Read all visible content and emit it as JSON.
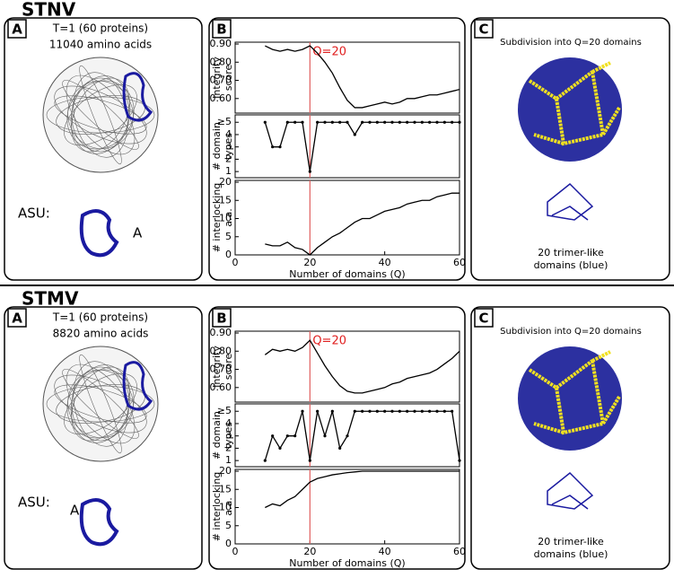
{
  "figures": [
    {
      "title": "STNV",
      "panel_a": {
        "label": "A",
        "lines": [
          "T=1 (60 proteins)",
          "11040 amino acids"
        ],
        "asu_label": "ASU:",
        "chain_label": "A"
      },
      "panel_b": {
        "label": "B"
      },
      "panel_c": {
        "label": "C",
        "caption": "Subdivision into Q=20 domains",
        "sublabel": [
          "20 trimer-like",
          "domains (blue)"
        ]
      }
    },
    {
      "title": "STMV",
      "panel_a": {
        "label": "A",
        "lines": [
          "T=1 (60 proteins)",
          "8820 amino acids"
        ],
        "asu_label": "ASU:",
        "chain_label": "A"
      },
      "panel_b": {
        "label": "B"
      },
      "panel_c": {
        "label": "C",
        "caption": "Subdivision into Q=20 domains",
        "sublabel": [
          "20 trimer-like",
          "domains (blue)"
        ]
      }
    }
  ],
  "chart_data": [
    {
      "type": "line",
      "y_label": [
        "Integrity",
        "score"
      ],
      "annotation": "Q=20",
      "highlight_x": 20,
      "color": "#000000",
      "highlight_color": "#e06060",
      "x": [
        8,
        10,
        12,
        14,
        16,
        18,
        20,
        22,
        24,
        26,
        28,
        30,
        32,
        34,
        36,
        38,
        40,
        42,
        44,
        46,
        48,
        50,
        52,
        54,
        56,
        58,
        60
      ],
      "values": [
        0.89,
        0.87,
        0.86,
        0.87,
        0.86,
        0.87,
        0.89,
        0.85,
        0.8,
        0.74,
        0.66,
        0.59,
        0.55,
        0.55,
        0.56,
        0.57,
        0.58,
        0.57,
        0.58,
        0.6,
        0.6,
        0.61,
        0.62,
        0.62,
        0.63,
        0.64,
        0.65
      ],
      "xlim": [
        0,
        60
      ],
      "ylim": [
        0.52,
        0.91
      ],
      "yticks": [
        {
          "value": 0.6,
          "label": "0.60"
        },
        {
          "value": 0.7,
          "label": "0.70"
        },
        {
          "value": 0.8,
          "label": "0.80"
        },
        {
          "value": 0.9,
          "label": "0.90"
        }
      ]
    },
    {
      "type": "line-dots",
      "y_label": [
        "# domain",
        "types"
      ],
      "highlight_x": 20,
      "color": "#000000",
      "highlight_color": "#e06060",
      "x": [
        8,
        10,
        12,
        14,
        16,
        18,
        20,
        22,
        24,
        26,
        28,
        30,
        32,
        34,
        36,
        38,
        40,
        42,
        44,
        46,
        48,
        50,
        52,
        54,
        56,
        58,
        60
      ],
      "values": [
        5,
        3,
        3,
        5,
        5,
        5,
        1,
        5,
        5,
        5,
        5,
        5,
        4,
        5,
        5,
        5,
        5,
        5,
        5,
        5,
        5,
        5,
        5,
        5,
        5,
        5,
        5
      ],
      "xlim": [
        0,
        60
      ],
      "ylim": [
        0.5,
        5.6
      ],
      "yticks": [
        1,
        2,
        3,
        4,
        {
          "value": 5,
          "label": "≥5"
        }
      ]
    },
    {
      "type": "line",
      "y_label": [
        "# interlocking",
        "a.a."
      ],
      "x_label": "Number of domains (Q)",
      "highlight_x": 20,
      "color": "#000000",
      "highlight_color": "#e06060",
      "x": [
        8,
        10,
        12,
        14,
        16,
        18,
        20,
        22,
        24,
        26,
        28,
        30,
        32,
        34,
        36,
        38,
        40,
        42,
        44,
        46,
        48,
        50,
        52,
        54,
        56,
        58,
        60
      ],
      "values": [
        3,
        2.5,
        2.5,
        3.5,
        2,
        1.5,
        0,
        2,
        3.5,
        5,
        6,
        7.5,
        9,
        10,
        10,
        11,
        12,
        12.5,
        13,
        14,
        14.5,
        15,
        15,
        16,
        16.5,
        17,
        17
      ],
      "xlim": [
        0,
        60
      ],
      "ylim": [
        0,
        20.5
      ],
      "xticks": [
        0,
        20,
        40,
        60
      ],
      "yticks": [
        0,
        5,
        10,
        15,
        20
      ]
    },
    {
      "type": "line",
      "y_label": [
        "Integrity",
        "score"
      ],
      "annotation": "Q=20",
      "highlight_x": 20,
      "color": "#000000",
      "highlight_color": "#e06060",
      "x": [
        8,
        10,
        12,
        14,
        16,
        18,
        20,
        22,
        24,
        26,
        28,
        30,
        32,
        34,
        36,
        38,
        40,
        42,
        44,
        46,
        48,
        50,
        52,
        54,
        56,
        58,
        60
      ],
      "values": [
        0.78,
        0.81,
        0.8,
        0.81,
        0.8,
        0.82,
        0.86,
        0.79,
        0.72,
        0.66,
        0.61,
        0.58,
        0.57,
        0.57,
        0.58,
        0.59,
        0.6,
        0.62,
        0.63,
        0.65,
        0.66,
        0.67,
        0.68,
        0.7,
        0.73,
        0.76,
        0.8
      ],
      "xlim": [
        0,
        60
      ],
      "ylim": [
        0.52,
        0.91
      ],
      "yticks": [
        {
          "value": 0.6,
          "label": "0.60"
        },
        {
          "value": 0.7,
          "label": "0.70"
        },
        {
          "value": 0.8,
          "label": "0.80"
        },
        {
          "value": 0.9,
          "label": "0.90"
        }
      ]
    },
    {
      "type": "line-dots",
      "y_label": [
        "# domain",
        "types"
      ],
      "highlight_x": 20,
      "color": "#000000",
      "highlight_color": "#e06060",
      "x": [
        8,
        10,
        12,
        14,
        16,
        18,
        20,
        22,
        24,
        26,
        28,
        30,
        32,
        34,
        36,
        38,
        40,
        42,
        44,
        46,
        48,
        50,
        52,
        54,
        56,
        58,
        60
      ],
      "values": [
        1,
        3,
        2,
        3,
        3,
        5,
        1,
        5,
        3,
        5,
        2,
        3,
        5,
        5,
        5,
        5,
        5,
        5,
        5,
        5,
        5,
        5,
        5,
        5,
        5,
        5,
        1
      ],
      "xlim": [
        0,
        60
      ],
      "ylim": [
        0.5,
        5.6
      ],
      "yticks": [
        1,
        2,
        3,
        4,
        {
          "value": 5,
          "label": "≥5"
        }
      ]
    },
    {
      "type": "line",
      "y_label": [
        "# interlocking",
        "a.a."
      ],
      "x_label": "Number of domains (Q)",
      "highlight_x": 20,
      "color": "#000000",
      "highlight_color": "#e06060",
      "x": [
        8,
        10,
        12,
        14,
        16,
        18,
        20,
        22,
        24,
        26,
        28,
        30,
        32,
        34,
        36,
        38,
        40,
        42,
        44,
        46,
        48,
        50,
        52,
        54,
        56,
        58,
        60
      ],
      "values": [
        10,
        11,
        10.5,
        12,
        13,
        15,
        17,
        18,
        18.5,
        19,
        19.3,
        19.6,
        19.8,
        20,
        20,
        20,
        20,
        20,
        20,
        20,
        20,
        20,
        20,
        20,
        20,
        20,
        20
      ],
      "xlim": [
        0,
        60
      ],
      "ylim": [
        0,
        20.5
      ],
      "xticks": [
        0,
        20,
        40,
        60
      ],
      "yticks": [
        0,
        5,
        10,
        15,
        20
      ]
    }
  ]
}
